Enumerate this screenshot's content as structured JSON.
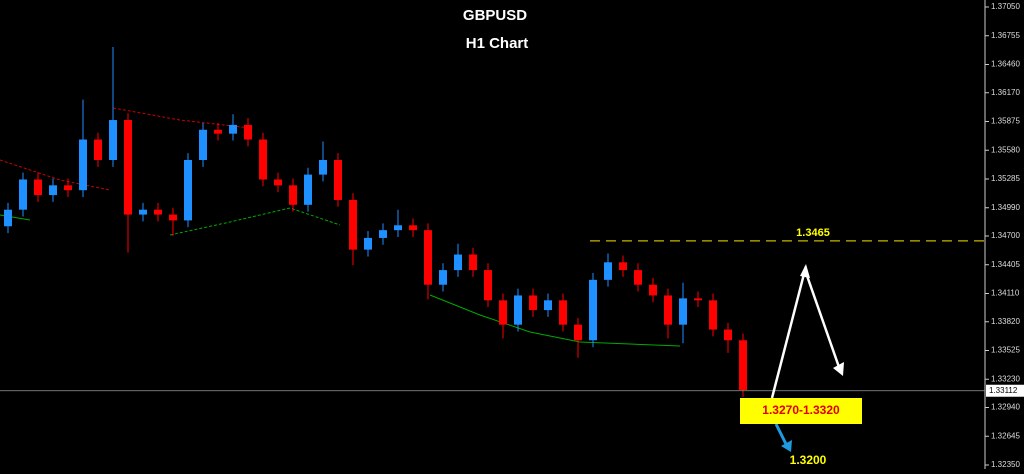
{
  "chart_data": {
    "type": "candlestick",
    "title": "GBPUSD",
    "subtitle": "H1 Chart",
    "series": [
      {
        "name": "GBPUSD",
        "up_color": "#1e90ff",
        "down_color": "#ff0000",
        "open": [
          1.348,
          1.3497,
          1.3528,
          1.3512,
          1.3522,
          1.3517,
          1.3569,
          1.3548,
          1.3589,
          1.3492,
          1.3497,
          1.3492,
          1.3486,
          1.3548,
          1.3579,
          1.3575,
          1.3584,
          1.3569,
          1.3528,
          1.3522,
          1.3502,
          1.3533,
          1.3548,
          1.3507,
          1.3456,
          1.3468,
          1.3476,
          1.3481,
          1.3476,
          1.342,
          1.3435,
          1.3451,
          1.3435,
          1.3404,
          1.3379,
          1.3409,
          1.3394,
          1.3404,
          1.3379,
          1.3363,
          1.3425,
          1.3443,
          1.3435,
          1.342,
          1.3409,
          1.3379,
          1.3406,
          1.3404,
          1.3374,
          1.3363
        ],
        "high": [
          1.3504,
          1.3535,
          1.3535,
          1.3529,
          1.3529,
          1.361,
          1.3576,
          1.3664,
          1.3596,
          1.3504,
          1.3504,
          1.3499,
          1.3555,
          1.3586,
          1.3586,
          1.3595,
          1.3591,
          1.3576,
          1.3535,
          1.3529,
          1.354,
          1.3567,
          1.3555,
          1.3514,
          1.3475,
          1.3483,
          1.3497,
          1.3488,
          1.3483,
          1.3442,
          1.3462,
          1.3458,
          1.3442,
          1.3411,
          1.3416,
          1.3416,
          1.3411,
          1.3411,
          1.3386,
          1.3432,
          1.3452,
          1.345,
          1.3442,
          1.3427,
          1.3416,
          1.3422,
          1.3413,
          1.3411,
          1.3381,
          1.337
        ],
        "low": [
          1.3473,
          1.349,
          1.3505,
          1.3505,
          1.351,
          1.351,
          1.3541,
          1.3541,
          1.3453,
          1.3485,
          1.3485,
          1.347,
          1.3479,
          1.3541,
          1.3568,
          1.3568,
          1.3562,
          1.3521,
          1.3515,
          1.3495,
          1.3495,
          1.3526,
          1.35,
          1.344,
          1.3449,
          1.3461,
          1.3469,
          1.3469,
          1.3405,
          1.3413,
          1.3428,
          1.3428,
          1.3397,
          1.3365,
          1.3372,
          1.3387,
          1.3387,
          1.3372,
          1.3345,
          1.3356,
          1.3418,
          1.3428,
          1.3413,
          1.3402,
          1.3365,
          1.336,
          1.3397,
          1.3367,
          1.335,
          1.3305
        ],
        "close": [
          1.3497,
          1.3528,
          1.3512,
          1.3522,
          1.3517,
          1.3569,
          1.3548,
          1.3589,
          1.3492,
          1.3497,
          1.3492,
          1.3486,
          1.3548,
          1.3579,
          1.3575,
          1.3584,
          1.3569,
          1.3528,
          1.3522,
          1.3502,
          1.3533,
          1.3548,
          1.3507,
          1.3456,
          1.3468,
          1.3476,
          1.3481,
          1.3476,
          1.342,
          1.3435,
          1.3451,
          1.3435,
          1.3404,
          1.3379,
          1.3409,
          1.3394,
          1.3404,
          1.3379,
          1.3363,
          1.3425,
          1.3443,
          1.3435,
          1.342,
          1.3409,
          1.3379,
          1.3406,
          1.3404,
          1.3374,
          1.3363,
          1.3312
        ]
      }
    ],
    "ylim": [
      1.3235,
      1.3705
    ],
    "yticks": [
      {
        "value": 1.3705,
        "label": "1.37050"
      },
      {
        "value": 1.36755,
        "label": "1.36755"
      },
      {
        "value": 1.3646,
        "label": "1.36460"
      },
      {
        "value": 1.3617,
        "label": "1.36170"
      },
      {
        "value": 1.35875,
        "label": "1.35875"
      },
      {
        "value": 1.3558,
        "label": "1.35580"
      },
      {
        "value": 1.35285,
        "label": "1.35285"
      },
      {
        "value": 1.3499,
        "label": "1.34990"
      },
      {
        "value": 1.347,
        "label": "1.34700"
      },
      {
        "value": 1.34405,
        "label": "1.34405"
      },
      {
        "value": 1.3411,
        "label": "1.34110"
      },
      {
        "value": 1.3382,
        "label": "1.33820"
      },
      {
        "value": 1.33525,
        "label": "1.33525"
      },
      {
        "value": 1.3323,
        "label": "1.33230"
      },
      {
        "value": 1.3294,
        "label": "1.32940"
      },
      {
        "value": 1.32645,
        "label": "1.32645"
      },
      {
        "value": 1.3235,
        "label": "1.32350"
      }
    ],
    "current_price": 1.33112,
    "level": 1.3465,
    "zone_label": "1.3270-1.3320",
    "target_label": "1.3200"
  }
}
